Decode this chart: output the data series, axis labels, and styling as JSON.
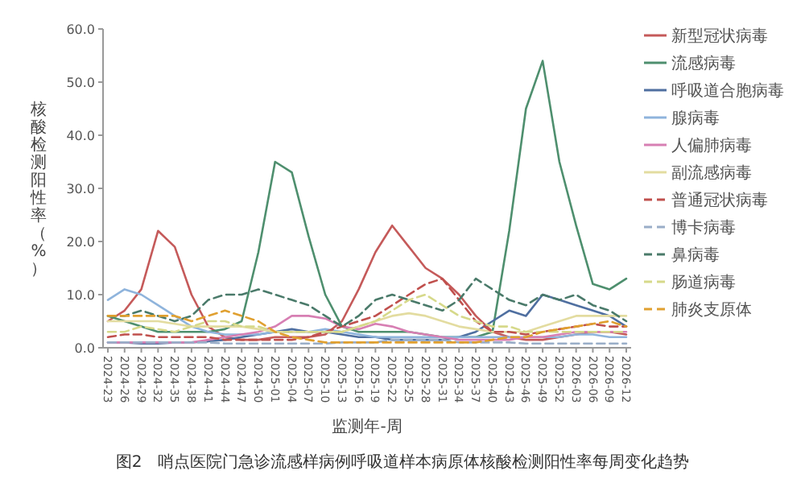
{
  "chart_data": {
    "type": "line",
    "title": "图2　哨点医院门急诊流感样病例呼吸道样本病原体核酸检测阳性率每周变化趋势",
    "xlabel": "监测年-周",
    "ylabel": "核酸检测阳性率（%）",
    "categories": [
      "2024-23",
      "2024-26",
      "2024-29",
      "2024-32",
      "2024-35",
      "2024-38",
      "2024-41",
      "2024-44",
      "2024-47",
      "2024-50",
      "2025-01",
      "2025-04",
      "2025-07",
      "2025-10",
      "2025-13",
      "2025-16",
      "2025-19",
      "2025-22",
      "2025-25",
      "2025-28",
      "2025-31",
      "2025-34",
      "2025-37",
      "2025-40",
      "2025-43",
      "2025-46",
      "2025-49",
      "2025-52",
      "2026-03",
      "2026-06",
      "2026-09",
      "2026-12"
    ],
    "ylim": [
      0,
      60
    ],
    "yticks": [
      {
        "value": 0,
        "label": "0.0"
      },
      {
        "value": 10,
        "label": "10.0"
      },
      {
        "value": 20,
        "label": "20.0"
      },
      {
        "value": 30,
        "label": "30.0"
      },
      {
        "value": 40,
        "label": "40.0"
      },
      {
        "value": 50,
        "label": "50.0"
      },
      {
        "value": 60,
        "label": "60.0"
      }
    ],
    "legend": "right",
    "marker": "none",
    "series": [
      {
        "name": "新型冠状病毒",
        "color": "#c55a5a",
        "line_style": "solid",
        "values": [
          5,
          7,
          11,
          22,
          19,
          10,
          4,
          2,
          1.5,
          1.5,
          2,
          2,
          2,
          2.5,
          5,
          11,
          18,
          23,
          19,
          15,
          13,
          10,
          6,
          3,
          2,
          1.5,
          1.5,
          2,
          2.5,
          3,
          3,
          2.5
        ]
      },
      {
        "name": "流感病毒",
        "color": "#4e8f6e",
        "line_style": "solid",
        "values": [
          6,
          5,
          4,
          3,
          3,
          3,
          3,
          3.5,
          5,
          18,
          35,
          33,
          21,
          10,
          4,
          3,
          3,
          3,
          3,
          2.5,
          2,
          2,
          2,
          3,
          22,
          45,
          54,
          35,
          23,
          12,
          11,
          13
        ]
      },
      {
        "name": "呼吸道合胞病毒",
        "color": "#4f6fa0",
        "line_style": "solid",
        "values": [
          1,
          1,
          0.8,
          0.8,
          1,
          1,
          1.2,
          1.5,
          2,
          2.5,
          3,
          3.5,
          3,
          3,
          2.5,
          2,
          2,
          1.5,
          1.5,
          1.5,
          1.5,
          2,
          3,
          5,
          7,
          6,
          10,
          9,
          8,
          7,
          6,
          4
        ]
      },
      {
        "name": "腺病毒",
        "color": "#8fb4dc",
        "line_style": "solid",
        "values": [
          9,
          11,
          10,
          8,
          6,
          4,
          3,
          2.5,
          2.5,
          2.5,
          3,
          3,
          3,
          3.5,
          3,
          2.5,
          2,
          2,
          2,
          2,
          2,
          2,
          2,
          2,
          2,
          2,
          2,
          2,
          2.5,
          2.5,
          2,
          2
        ]
      },
      {
        "name": "人偏肺病毒",
        "color": "#d77fb3",
        "line_style": "solid",
        "values": [
          1,
          1,
          1,
          1,
          1,
          1,
          1.5,
          2,
          2.5,
          3,
          4,
          6,
          6,
          5.5,
          4,
          3.5,
          4.5,
          4,
          3,
          2.5,
          2,
          1.5,
          1.5,
          1.5,
          1.5,
          2,
          2,
          2.5,
          3,
          3,
          3,
          3
        ]
      },
      {
        "name": "副流感病毒",
        "color": "#e3dca0",
        "line_style": "solid",
        "values": [
          5,
          5,
          5,
          5,
          4.5,
          4,
          4,
          4,
          4,
          3.5,
          3,
          3,
          3,
          3,
          3,
          4,
          5,
          6,
          6.5,
          6,
          5,
          4,
          3.5,
          3,
          3,
          3,
          4,
          5,
          6,
          6,
          6,
          6
        ]
      },
      {
        "name": "普通冠状病毒",
        "color": "#c0504d",
        "line_style": "dashed",
        "values": [
          2,
          2.5,
          2.5,
          2,
          2,
          2,
          2,
          1.5,
          1.5,
          1.5,
          1.5,
          1.5,
          2,
          3,
          4,
          5,
          6,
          8,
          10,
          12,
          13,
          9,
          5,
          3,
          3,
          2.5,
          3,
          3.5,
          4,
          4.5,
          4,
          4
        ]
      },
      {
        "name": "博卡病毒",
        "color": "#9aaec8",
        "line_style": "dashed",
        "values": [
          1,
          1,
          1,
          1,
          1,
          1,
          1,
          0.8,
          0.8,
          0.8,
          0.8,
          0.8,
          0.8,
          0.8,
          1,
          1,
          1,
          1.5,
          1.5,
          1.5,
          1.5,
          1,
          1,
          1,
          1,
          0.8,
          0.8,
          0.8,
          0.8,
          0.8,
          0.8,
          0.8
        ]
      },
      {
        "name": "鼻病毒",
        "color": "#4a7a6a",
        "line_style": "dashed",
        "values": [
          6,
          6,
          7,
          6,
          5,
          6,
          9,
          10,
          10,
          11,
          10,
          9,
          8,
          6,
          4,
          6,
          9,
          10,
          9,
          8,
          7,
          9,
          13,
          11,
          9,
          8,
          10,
          9,
          10,
          8,
          7,
          5
        ]
      },
      {
        "name": "肠道病毒",
        "color": "#d6d98a",
        "line_style": "dashed",
        "values": [
          3,
          3,
          4,
          3.5,
          3,
          4,
          5,
          5,
          4,
          4,
          3,
          3,
          3,
          3,
          3,
          4,
          5,
          7,
          9,
          10,
          8,
          6,
          5,
          4,
          4,
          3,
          3,
          3,
          3,
          3,
          3,
          3
        ]
      },
      {
        "name": "肺炎支原体",
        "color": "#e0a030",
        "line_style": "dashed",
        "values": [
          6,
          6,
          6,
          6,
          6,
          5,
          6,
          7,
          6,
          5,
          3,
          2,
          1.5,
          1,
          1,
          1,
          1,
          1,
          1,
          1,
          1,
          1,
          1,
          1.5,
          2,
          2,
          3,
          3.5,
          4,
          4.5,
          5,
          4
        ]
      }
    ]
  }
}
